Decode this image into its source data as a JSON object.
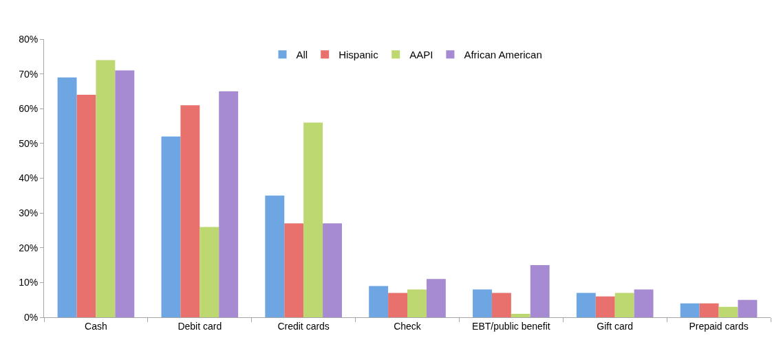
{
  "chart_data": {
    "type": "bar",
    "categories": [
      "Cash",
      "Debit card",
      "Credit cards",
      "Check",
      "EBT/public benefit",
      "Gift card",
      "Prepaid cards"
    ],
    "series": [
      {
        "name": "All",
        "color": "#6ea6e4",
        "values": [
          69,
          52,
          35,
          9,
          8,
          7,
          4
        ]
      },
      {
        "name": "Hispanic",
        "color": "#e8716d",
        "values": [
          64,
          61,
          27,
          7,
          7,
          6,
          4
        ]
      },
      {
        "name": "AAPI",
        "color": "#bdd870",
        "values": [
          74,
          26,
          56,
          8,
          1,
          7,
          3
        ]
      },
      {
        "name": "African American",
        "color": "#a68ad2",
        "values": [
          71,
          65,
          27,
          11,
          15,
          8,
          5
        ]
      }
    ],
    "ylim": [
      0,
      80
    ],
    "yticks": [
      {
        "value": 0,
        "label": "0%"
      },
      {
        "value": 10,
        "label": "10%"
      },
      {
        "value": 20,
        "label": "20%"
      },
      {
        "value": 30,
        "label": "30%"
      },
      {
        "value": 40,
        "label": "40%"
      },
      {
        "value": 50,
        "label": "50%"
      },
      {
        "value": 60,
        "label": "60%"
      },
      {
        "value": 70,
        "label": "70%"
      },
      {
        "value": 80,
        "label": "80%"
      }
    ],
    "grid": false,
    "legend": "top"
  }
}
